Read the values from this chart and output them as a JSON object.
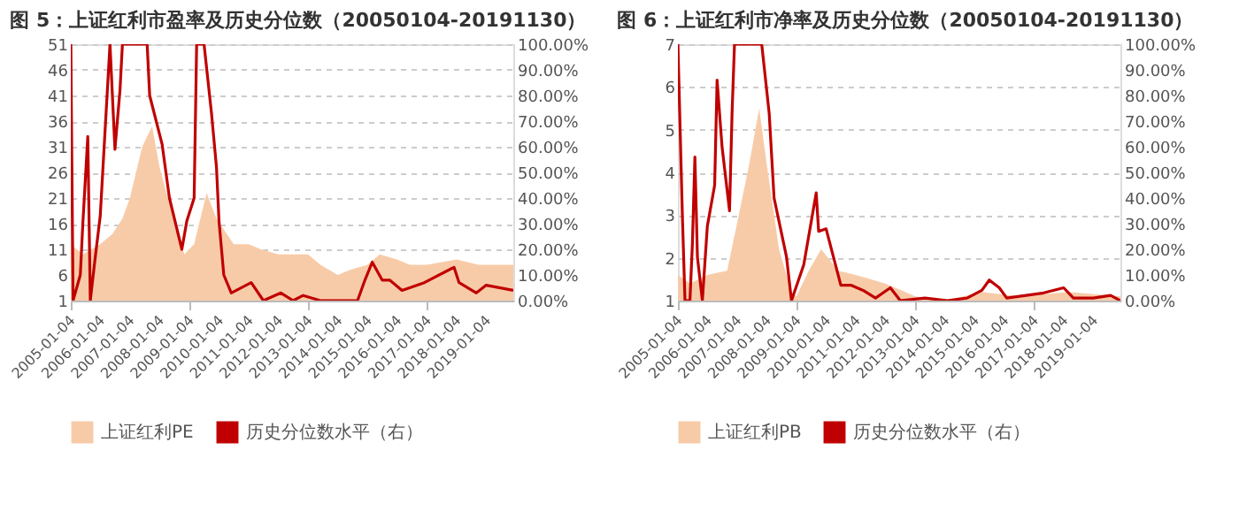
{
  "chart_data": [
    {
      "type": "area",
      "title": "图 5：上证红利市盈率及历史分位数（20050104-20191130）",
      "xlim": [
        "2005-01-04",
        "2019-11-30"
      ],
      "xticks": [
        "2005-01-04",
        "2006-01-04",
        "2007-01-04",
        "2008-01-04",
        "2009-01-04",
        "2010-01-04",
        "2011-01-04",
        "2012-01-04",
        "2013-01-04",
        "2014-01-04",
        "2015-01-04",
        "2016-01-04",
        "2017-01-04",
        "2018-01-04",
        "2019-01-04"
      ],
      "ylim": [
        1,
        51
      ],
      "yticks": [
        1,
        6,
        11,
        16,
        21,
        26,
        31,
        36,
        41,
        46,
        51
      ],
      "y2lim": [
        0,
        100
      ],
      "y2ticks": [
        {
          "value": 0,
          "label": "0.00%"
        },
        {
          "value": 10,
          "label": "10.00%"
        },
        {
          "value": 20,
          "label": "20.00%"
        },
        {
          "value": 30,
          "label": "30.00%"
        },
        {
          "value": 40,
          "label": "40.00%"
        },
        {
          "value": 50,
          "label": "50.00%"
        },
        {
          "value": 60,
          "label": "60.00%"
        },
        {
          "value": 70,
          "label": "70.00%"
        },
        {
          "value": 80,
          "label": "80.00%"
        },
        {
          "value": 90,
          "label": "90.00%"
        },
        {
          "value": 100,
          "label": "100.00%"
        }
      ],
      "grid": "y",
      "legend": "bottom",
      "series": [
        {
          "name": "上证红利PE",
          "type": "area",
          "color": "#f8cba8",
          "x": [
            "2005-01-04",
            "2005-06",
            "2006-01",
            "2006-06",
            "2006-10",
            "2007-01",
            "2007-06",
            "2007-10",
            "2008-01",
            "2008-06",
            "2008-11",
            "2009-03",
            "2009-08",
            "2009-12",
            "2010-07",
            "2011-01",
            "2011-06",
            "2012-01",
            "2013-01",
            "2013-06",
            "2014-01",
            "2014-06",
            "2015-01",
            "2015-06",
            "2016-01",
            "2016-06",
            "2017-01",
            "2018-01",
            "2018-10",
            "2019-01",
            "2019-06",
            "2019-11-30"
          ],
          "values": [
            12,
            10,
            12,
            14,
            17,
            21,
            31,
            35,
            27,
            18,
            10,
            12,
            22,
            17,
            12,
            12,
            11,
            10,
            10,
            8,
            6,
            7,
            8,
            10,
            9,
            8,
            8,
            9,
            8,
            8,
            8,
            8
          ]
        },
        {
          "name": "历史分位数水平（右）",
          "type": "line",
          "axis": "y2",
          "color": "#c00000",
          "x": [
            "2005-01-04",
            "2005-02",
            "2005-05",
            "2005-06",
            "2005-08",
            "2005-09",
            "2005-11",
            "2006-01",
            "2006-05",
            "2006-07",
            "2006-09",
            "2006-10",
            "2007-08",
            "2007-09",
            "2008-02",
            "2008-05",
            "2008-10",
            "2008-12",
            "2009-03",
            "2009-04",
            "2009-07",
            "2009-10",
            "2009-12",
            "2010-01",
            "2010-03",
            "2010-06",
            "2011-02",
            "2011-07",
            "2012-02",
            "2012-07",
            "2012-11",
            "2013-06",
            "2014-09",
            "2014-12",
            "2015-03",
            "2015-07",
            "2015-10",
            "2016-03",
            "2016-12",
            "2017-12",
            "2018-02",
            "2018-09",
            "2019-01",
            "2019-11-30"
          ],
          "values": [
            100,
            0,
            10,
            30,
            64,
            0,
            17,
            33,
            100,
            59,
            82,
            100,
            100,
            80,
            61,
            40,
            20,
            31,
            40,
            100,
            100,
            73,
            52,
            31,
            10,
            3,
            7,
            0,
            3,
            0,
            2,
            0,
            0,
            8,
            15,
            8,
            8,
            4,
            7,
            13,
            7,
            3,
            6,
            4
          ]
        }
      ]
    },
    {
      "type": "area",
      "title": "图 6：上证红利市净率及历史分位数（20050104-20191130）",
      "xlim": [
        "2005-01-04",
        "2019-11-30"
      ],
      "xticks": [
        "2005-01-04",
        "2006-01-04",
        "2007-01-04",
        "2008-01-04",
        "2009-01-04",
        "2010-01-04",
        "2011-01-04",
        "2012-01-04",
        "2013-01-04",
        "2014-01-04",
        "2015-01-04",
        "2016-01-04",
        "2017-01-04",
        "2018-01-04",
        "2019-01-04"
      ],
      "ylim": [
        1,
        7
      ],
      "yticks": [
        1,
        2,
        3,
        4,
        5,
        6,
        7
      ],
      "y2lim": [
        0,
        100
      ],
      "y2ticks": [
        {
          "value": 0,
          "label": "0.00%"
        },
        {
          "value": 10,
          "label": "10.00%"
        },
        {
          "value": 20,
          "label": "20.00%"
        },
        {
          "value": 30,
          "label": "30.00%"
        },
        {
          "value": 40,
          "label": "40.00%"
        },
        {
          "value": 50,
          "label": "50.00%"
        },
        {
          "value": 60,
          "label": "60.00%"
        },
        {
          "value": 70,
          "label": "70.00%"
        },
        {
          "value": 80,
          "label": "80.00%"
        },
        {
          "value": 90,
          "label": "90.00%"
        },
        {
          "value": 100,
          "label": "100.00%"
        }
      ],
      "grid": "y",
      "legend": "bottom",
      "series": [
        {
          "name": "上证红利PB",
          "type": "area",
          "color": "#f8cba8",
          "x": [
            "2005-01-04",
            "2005-06",
            "2006-01",
            "2006-09",
            "2007-01",
            "2007-06",
            "2007-10",
            "2008-01",
            "2008-06",
            "2008-11",
            "2009-01",
            "2009-06",
            "2009-11",
            "2010-06",
            "2011-01",
            "2012-01",
            "2013-01",
            "2014-01",
            "2015-04",
            "2016-07",
            "2018-03",
            "2019-11-30"
          ],
          "values": [
            1.6,
            1.4,
            1.6,
            1.7,
            2.8,
            4.2,
            5.5,
            4.2,
            2.2,
            1.2,
            1.1,
            1.7,
            2.2,
            1.7,
            1.6,
            1.4,
            1.1,
            1.0,
            1.2,
            1.1,
            1.2,
            1.1
          ]
        },
        {
          "name": "历史分位数水平（右）",
          "type": "line",
          "axis": "y2",
          "color": "#c00000",
          "x": [
            "2005-01-04",
            "2005-03",
            "2005-04",
            "2005-06",
            "2005-07",
            "2005-08",
            "2005-09",
            "2005-11",
            "2006-01",
            "2006-04",
            "2006-05",
            "2006-07",
            "2006-10",
            "2006-11",
            "2006-12",
            "2007-11",
            "2008-02",
            "2008-04",
            "2008-09",
            "2008-11",
            "2009-04",
            "2009-09",
            "2009-10",
            "2010-01",
            "2010-04",
            "2010-07",
            "2010-11",
            "2011-04",
            "2011-09",
            "2012-03",
            "2012-07",
            "2013-05",
            "2014-02",
            "2014-10",
            "2015-04",
            "2015-07",
            "2015-11",
            "2016-02",
            "2017-05",
            "2018-01",
            "2018-05",
            "2019-01",
            "2019-08",
            "2019-11-30"
          ],
          "values": [
            100,
            32,
            0,
            0,
            22,
            56,
            17,
            0,
            29,
            45,
            86,
            60,
            35,
            73,
            100,
            100,
            73,
            40,
            17,
            0,
            14,
            42,
            27,
            28,
            17,
            6,
            6,
            4,
            1,
            5,
            0,
            1,
            0,
            1,
            4,
            8,
            5,
            1,
            3,
            5,
            1,
            1,
            2,
            0
          ]
        }
      ]
    }
  ]
}
